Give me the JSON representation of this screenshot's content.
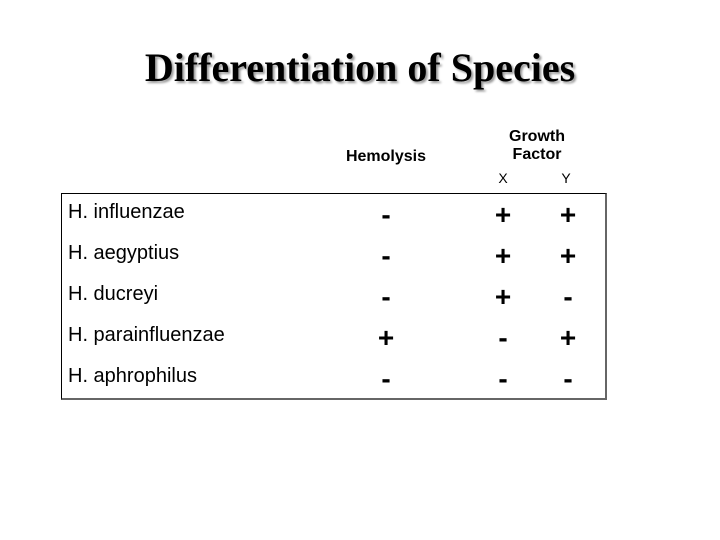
{
  "header": {
    "title": "Differentiation of Species"
  },
  "table": {
    "columns": {
      "hemolysis": "Hemolysis",
      "growth_factor": "Growth Factor",
      "x": "X",
      "y": "Y"
    },
    "rows": [
      [
        "H. influenzae",
        "-",
        "+",
        "+"
      ],
      [
        "H. aegyptius",
        "-",
        "+",
        "+"
      ],
      [
        "H. ducreyi",
        "-",
        "+",
        "-"
      ],
      [
        "H. parainfluenzae",
        "+",
        "-",
        "+"
      ],
      [
        "H. aphrophilus",
        "-",
        "-",
        "-"
      ]
    ]
  }
}
